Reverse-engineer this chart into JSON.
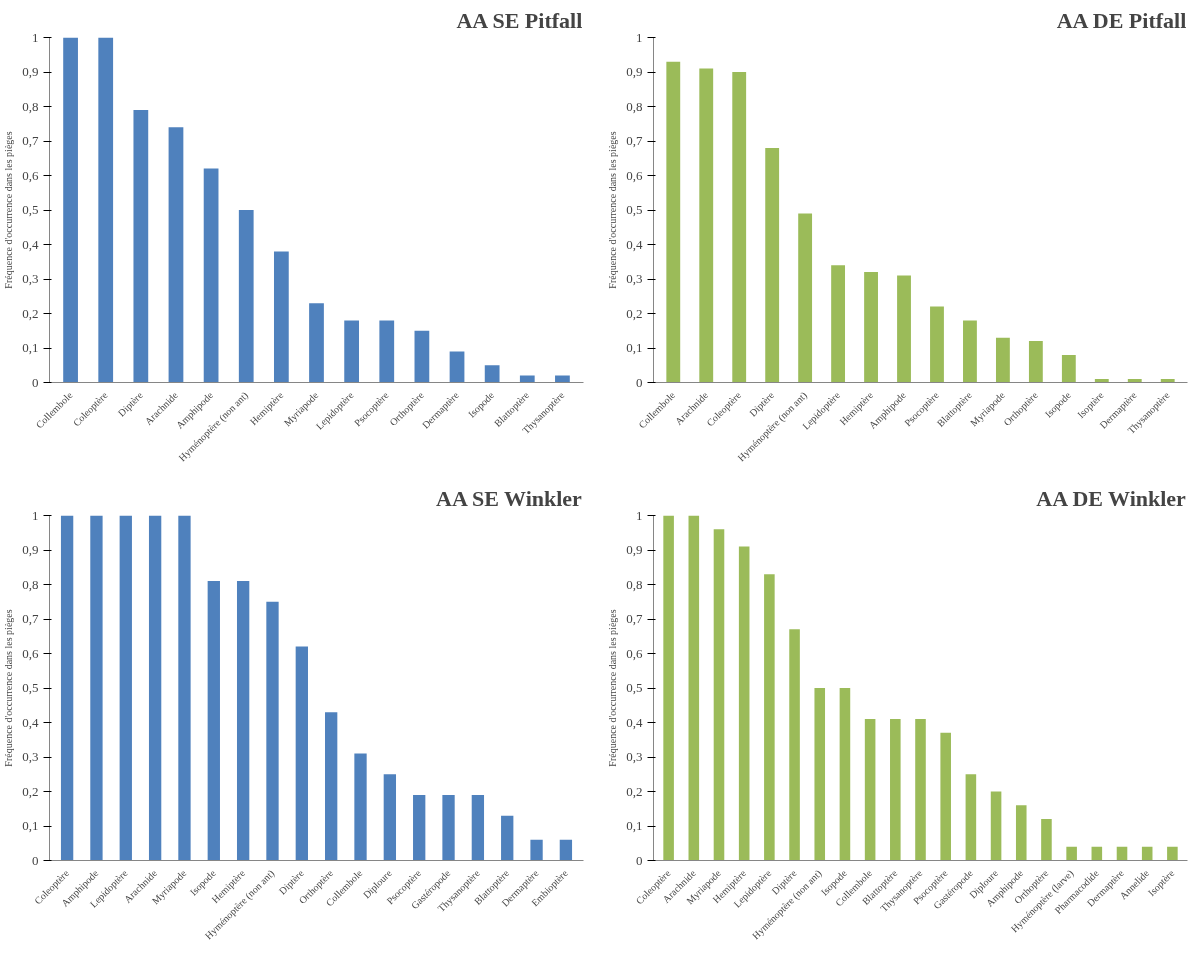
{
  "chart_data": [
    {
      "type": "bar",
      "title": "AA SE Pitfall",
      "ylabel": "Fréquence d'occurrence dans les pièges",
      "color": "#4f81bd",
      "categories": [
        "Collembole",
        "Coleoptère",
        "Diptère",
        "Arachnide",
        "Amphipode",
        "Hyménoptère (non ant)",
        "Hemiptère",
        "Myriapode",
        "Lepidoptère",
        "Psocoptère",
        "Orthoptère",
        "Dermaptère",
        "Isopode",
        "Blattoptère",
        "Thysanoptère"
      ],
      "values": [
        1,
        1,
        0.79,
        0.74,
        0.62,
        0.5,
        0.38,
        0.23,
        0.18,
        0.18,
        0.15,
        0.09,
        0.05,
        0.02,
        0.02
      ],
      "ylim": [
        0,
        1
      ],
      "yticks": [
        0,
        {
          "value": 0.1,
          "label": "0,1"
        },
        {
          "value": 0.2,
          "label": "0,2"
        },
        {
          "value": 0.3,
          "label": "0,3"
        },
        {
          "value": 0.4,
          "label": "0,4"
        },
        {
          "value": 0.5,
          "label": "0,5"
        },
        {
          "value": 0.6,
          "label": "0,6"
        },
        {
          "value": 0.7,
          "label": "0,7"
        },
        {
          "value": 0.8,
          "label": "0,8"
        },
        {
          "value": 0.9,
          "label": "0,9"
        },
        1
      ]
    },
    {
      "type": "bar",
      "title": "AA DE Pitfall",
      "ylabel": "Fréquence d'occurrence dans les pièges",
      "color": "#9bbb59",
      "categories": [
        "Collembole",
        "Arachnide",
        "Coleoptère",
        "Diptère",
        "Hyménoptère (non ant)",
        "Lepidoptère",
        "Hemiptère",
        "Amphipode",
        "Psocoptère",
        "Blattoptère",
        "Myriapode",
        "Orthoptère",
        "Isopode",
        "Isoptère",
        "Dermaptère",
        "Thysanoptère"
      ],
      "values": [
        0.93,
        0.91,
        0.9,
        0.68,
        0.49,
        0.34,
        0.32,
        0.31,
        0.22,
        0.18,
        0.13,
        0.12,
        0.08,
        0.01,
        0.01,
        0.01
      ],
      "ylim": [
        0,
        1
      ],
      "yticks": [
        0,
        {
          "value": 0.1,
          "label": "0,1"
        },
        {
          "value": 0.2,
          "label": "0,2"
        },
        {
          "value": 0.3,
          "label": "0,3"
        },
        {
          "value": 0.4,
          "label": "0,4"
        },
        {
          "value": 0.5,
          "label": "0,5"
        },
        {
          "value": 0.6,
          "label": "0,6"
        },
        {
          "value": 0.7,
          "label": "0,7"
        },
        {
          "value": 0.8,
          "label": "0,8"
        },
        {
          "value": 0.9,
          "label": "0,9"
        },
        1
      ]
    },
    {
      "type": "bar",
      "title": "AA SE Winkler",
      "ylabel": "Fréquence d'occurrence dans les pièges",
      "color": "#4f81bd",
      "categories": [
        "Coleoptère",
        "Amphipode",
        "Lepidoptère",
        "Arachnide",
        "Myriapode",
        "Isopode",
        "Hemiptère",
        "Hyménoptère (non ant)",
        "Diptère",
        "Orthoptère",
        "Collembole",
        "Diploure",
        "Psocoptère",
        "Gastéropode",
        "Thysanoptère",
        "Blattoptère",
        "Dermaptère",
        "Embioptère"
      ],
      "values": [
        1,
        1,
        1,
        1,
        1,
        0.81,
        0.81,
        0.75,
        0.62,
        0.43,
        0.31,
        0.25,
        0.19,
        0.19,
        0.19,
        0.13,
        0.06,
        0.06
      ],
      "ylim": [
        0,
        1
      ],
      "yticks": [
        0,
        {
          "value": 0.1,
          "label": "0,1"
        },
        {
          "value": 0.2,
          "label": "0,2"
        },
        {
          "value": 0.3,
          "label": "0,3"
        },
        {
          "value": 0.4,
          "label": "0,4"
        },
        {
          "value": 0.5,
          "label": "0,5"
        },
        {
          "value": 0.6,
          "label": "0,6"
        },
        {
          "value": 0.7,
          "label": "0,7"
        },
        {
          "value": 0.8,
          "label": "0,8"
        },
        {
          "value": 0.9,
          "label": "0,9"
        },
        1
      ]
    },
    {
      "type": "bar",
      "title": "AA DE Winkler",
      "ylabel": "Fréquence d'occurrence dans les pièges",
      "color": "#9bbb59",
      "categories": [
        "Coleoptère",
        "Arachnide",
        "Myriapode",
        "Hemiptère",
        "Lepidoptère",
        "Diptère",
        "Hyménoptère (non ant)",
        "Isopode",
        "Collembole",
        "Blattoptère",
        "Thysanoptère",
        "Psocoptère",
        "Gastéropode",
        "Diploure",
        "Amphipode",
        "Orthoptère",
        "Hyménoptère (larve)",
        "Pharmacodide",
        "Dermaptère",
        "Annelide",
        "Isoptère"
      ],
      "values": [
        1,
        1,
        0.96,
        0.91,
        0.83,
        0.67,
        0.5,
        0.5,
        0.41,
        0.41,
        0.41,
        0.37,
        0.25,
        0.2,
        0.16,
        0.12,
        0.04,
        0.04,
        0.04,
        0.04,
        0.04
      ],
      "ylim": [
        0,
        1
      ],
      "yticks": [
        0,
        {
          "value": 0.1,
          "label": "0,1"
        },
        {
          "value": 0.2,
          "label": "0,2"
        },
        {
          "value": 0.3,
          "label": "0,3"
        },
        {
          "value": 0.4,
          "label": "0,4"
        },
        {
          "value": 0.5,
          "label": "0,5"
        },
        {
          "value": 0.6,
          "label": "0,6"
        },
        {
          "value": 0.7,
          "label": "0,7"
        },
        {
          "value": 0.8,
          "label": "0,8"
        },
        {
          "value": 0.9,
          "label": "0,9"
        },
        1
      ]
    }
  ]
}
